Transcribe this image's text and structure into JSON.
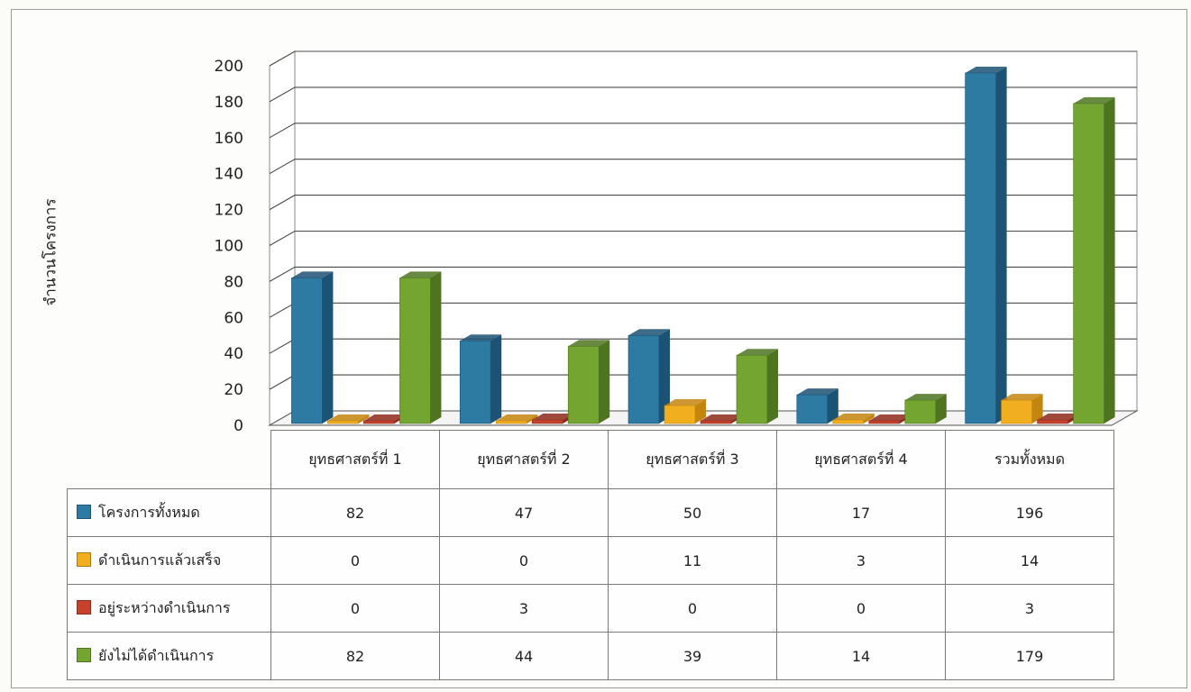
{
  "chart_data": {
    "type": "bar",
    "ylabel": "จำนวนโครงการ",
    "ylim": [
      0,
      200
    ],
    "yticks": [
      0,
      20,
      40,
      60,
      80,
      100,
      120,
      140,
      160,
      180,
      200
    ],
    "grid": true,
    "legend": "data-table",
    "categories": [
      "ยุทธศาสตร์ที่ 1",
      "ยุทธศาสตร์ที่ 2",
      "ยุทธศาสตร์ที่ 3",
      "ยุทธศาสตร์ที่ 4",
      "รวมทั้งหมด"
    ],
    "series": [
      {
        "name": "โครงการทั้งหมด",
        "values": [
          82,
          47,
          50,
          17,
          196
        ],
        "color": "#2d7aa3",
        "side": "#1c5273"
      },
      {
        "name": "ดำเนินการแล้วเสร็จ",
        "values": [
          0,
          0,
          11,
          3,
          14
        ],
        "color": "#f1ae1e",
        "side": "#c4850d"
      },
      {
        "name": "อยู่ระหว่างดำเนินการ",
        "values": [
          0,
          3,
          0,
          0,
          3
        ],
        "color": "#c8412d",
        "side": "#8e2a1b"
      },
      {
        "name": "ยังไม่ได้ดำเนินการ",
        "values": [
          82,
          44,
          39,
          14,
          179
        ],
        "color": "#74a531",
        "side": "#4e7420"
      }
    ]
  }
}
